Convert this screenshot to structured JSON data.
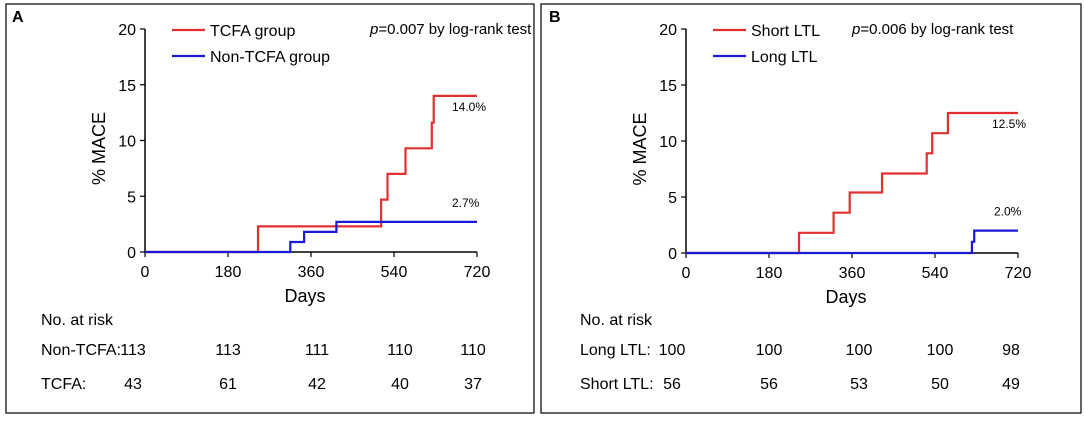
{
  "chart_data": [
    {
      "type": "line",
      "panel_label": "A",
      "xlabel": "Days",
      "ylabel": "% MACE",
      "xlim": [
        0,
        720
      ],
      "ylim": [
        0,
        20
      ],
      "xticks": [
        0,
        180,
        360,
        540,
        720
      ],
      "yticks": [
        0,
        5,
        10,
        15,
        20
      ],
      "legend_position": "top-left",
      "annotation": {
        "prefix": "p",
        "text": "=0.007 by log-rank test"
      },
      "series": [
        {
          "name": "TCFA group",
          "color": "#e03030",
          "step": true,
          "x": [
            0,
            245,
            245,
            512,
            512,
            526,
            526,
            565,
            565,
            622,
            622,
            626,
            626,
            720
          ],
          "y": [
            0,
            0,
            2.3,
            2.3,
            4.7,
            4.7,
            7.0,
            7.0,
            9.3,
            9.3,
            11.6,
            11.6,
            14.0,
            14.0
          ],
          "end_label": "14.0%"
        },
        {
          "name": "Non-TCFA group",
          "color": "#1a1ad6",
          "step": true,
          "x": [
            0,
            315,
            315,
            345,
            345,
            415,
            415,
            720
          ],
          "y": [
            0,
            0,
            0.9,
            0.9,
            1.8,
            1.8,
            2.7,
            2.7
          ],
          "end_label": "2.7%"
        }
      ],
      "risk_table": {
        "title": "No. at risk",
        "rows": [
          {
            "label": "Non-TCFA:",
            "values": [
              "113",
              "113",
              "111",
              "110",
              "110"
            ]
          },
          {
            "label": "TCFA:",
            "values": [
              "43",
              "61",
              "42",
              "40",
              "37"
            ]
          }
        ]
      }
    },
    {
      "type": "line",
      "panel_label": "B",
      "xlabel": "Days",
      "ylabel": "% MACE",
      "xlim": [
        0,
        720
      ],
      "ylim": [
        0,
        20
      ],
      "xticks": [
        0,
        180,
        360,
        540,
        720
      ],
      "yticks": [
        0,
        5,
        10,
        15,
        20
      ],
      "legend_position": "top-left",
      "annotation": {
        "prefix": "p",
        "text": "=0.006 by log-rank test"
      },
      "series": [
        {
          "name": "Short LTL",
          "color": "#e03030",
          "step": true,
          "x": [
            0,
            245,
            245,
            320,
            320,
            355,
            355,
            425,
            425,
            522,
            522,
            534,
            534,
            568,
            568,
            720
          ],
          "y": [
            0,
            0,
            1.8,
            1.8,
            3.6,
            3.6,
            5.4,
            5.4,
            7.1,
            7.1,
            8.9,
            8.9,
            10.7,
            10.7,
            12.5,
            12.5
          ],
          "end_label": "12.5%"
        },
        {
          "name": "Long LTL",
          "color": "#1a1ad6",
          "step": true,
          "x": [
            0,
            620,
            620,
            625,
            625,
            720
          ],
          "y": [
            0,
            0,
            1.0,
            1.0,
            2.0,
            2.0
          ],
          "end_label": "2.0%"
        }
      ],
      "risk_table": {
        "title": "No. at risk",
        "rows": [
          {
            "label": "Long LTL:",
            "values": [
              "100",
              "100",
              "100",
              "100",
              "98"
            ]
          },
          {
            "label": "Short LTL:",
            "values": [
              "56",
              "56",
              "53",
              "50",
              "49"
            ]
          }
        ]
      }
    }
  ]
}
